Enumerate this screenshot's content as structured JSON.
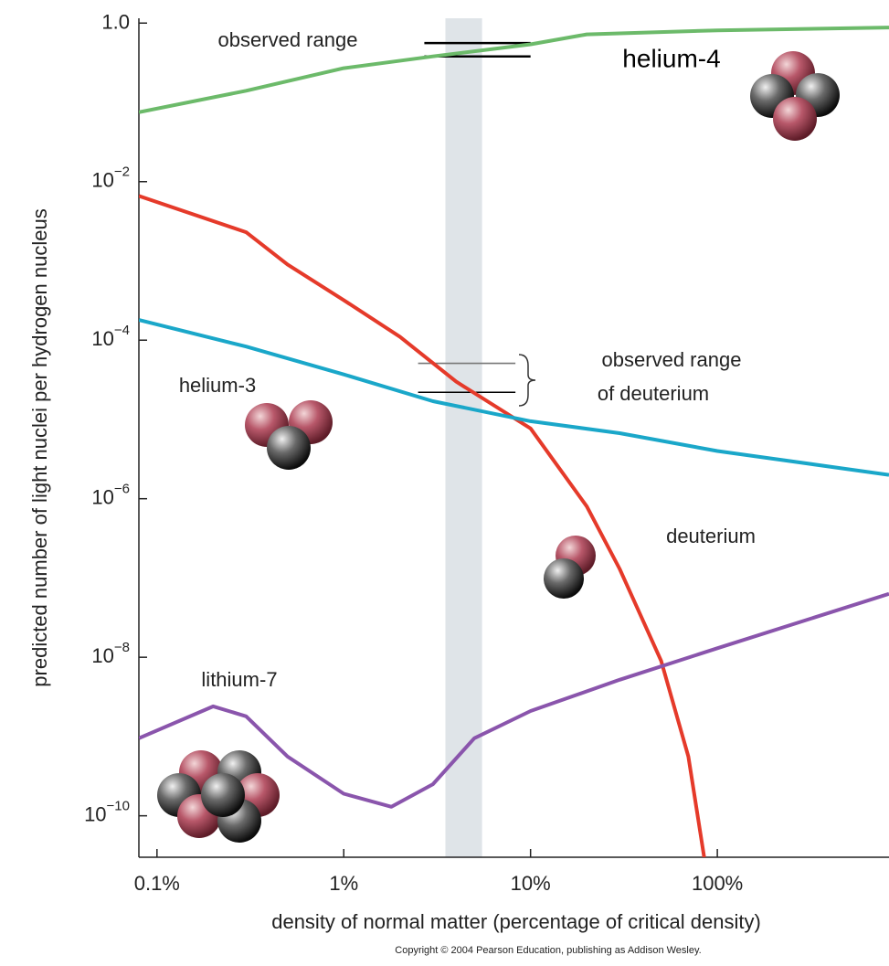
{
  "chart_data": {
    "type": "line",
    "log_x": true,
    "log_y": true,
    "xlabel": "density of normal matter (percentage of critical density)",
    "ylabel": "predicted number of light nuclei per hydrogen nucleus",
    "footer": "Copyright © 2004 Pearson Education, publishing as Addison Wesley.",
    "xlim": [
      0.08,
      830
    ],
    "ylim": [
      3e-11,
      1.15
    ],
    "xticks": [
      {
        "value": 0.1,
        "label": "0.1%"
      },
      {
        "value": 1,
        "label": "1%"
      },
      {
        "value": 10,
        "label": "10%"
      },
      {
        "value": 100,
        "label": "100%"
      }
    ],
    "yticks": [
      {
        "value": 1,
        "label": "1.0"
      },
      {
        "value": 0.01,
        "label": "10",
        "exponent": "−2"
      },
      {
        "value": 0.0001,
        "label": "10",
        "exponent": "−4"
      },
      {
        "value": 1e-06,
        "label": "10",
        "exponent": "−6"
      },
      {
        "value": 1e-08,
        "label": "10",
        "exponent": "−8"
      },
      {
        "value": 1e-10,
        "label": "10",
        "exponent": "−10"
      }
    ],
    "series": [
      {
        "name": "helium-4",
        "color": "#6cba6a",
        "x": [
          0.08,
          0.3,
          1,
          3,
          10,
          20,
          100,
          830
        ],
        "values": [
          0.075,
          0.14,
          0.27,
          0.38,
          0.54,
          0.72,
          0.81,
          0.88
        ]
      },
      {
        "name": "deuterium",
        "color": "#e53a2a",
        "x": [
          0.08,
          0.3,
          0.5,
          1,
          2,
          4,
          10,
          20,
          30,
          50,
          70,
          85
        ],
        "values": [
          0.0066,
          0.0023,
          0.0009,
          0.00032,
          0.00011,
          3e-05,
          7.7e-06,
          8e-07,
          1.3e-07,
          9e-09,
          5.6e-10,
          3e-11
        ]
      },
      {
        "name": "helium-3",
        "color": "#1aa7c9",
        "x": [
          0.08,
          0.3,
          1,
          3,
          10,
          30,
          100,
          830
        ],
        "values": [
          0.00018,
          8.3e-05,
          3.7e-05,
          1.7e-05,
          9.5e-06,
          6.7e-06,
          4e-06,
          2e-06
        ]
      },
      {
        "name": "lithium-7",
        "color": "#8a55ac",
        "x": [
          0.08,
          0.2,
          0.3,
          0.5,
          1,
          1.8,
          3,
          5,
          10,
          30,
          100,
          830
        ],
        "values": [
          9.5e-10,
          2.4e-09,
          1.8e-09,
          5.6e-10,
          1.9e-10,
          1.3e-10,
          2.5e-10,
          9.5e-10,
          2.1e-09,
          5.2e-09,
          1.3e-08,
          6.3e-08
        ]
      }
    ],
    "band": {
      "x": [
        3.5,
        5.5
      ],
      "color": "#dfe4e8"
    },
    "observed_ranges": [
      {
        "x": [
          2.7,
          10
        ],
        "values": [
          0.56,
          0.38
        ],
        "colors": [
          "#000000",
          "#000000"
        ]
      },
      {
        "x": [
          2.5,
          8.3
        ],
        "values": [
          5.1e-05,
          2.2e-05
        ],
        "colors": [
          "#777777",
          "#000000"
        ]
      }
    ],
    "annotations": [
      "observed range",
      "helium-4",
      "helium-3",
      "observed range",
      "of deuterium",
      "deuterium",
      "lithium-7"
    ]
  }
}
